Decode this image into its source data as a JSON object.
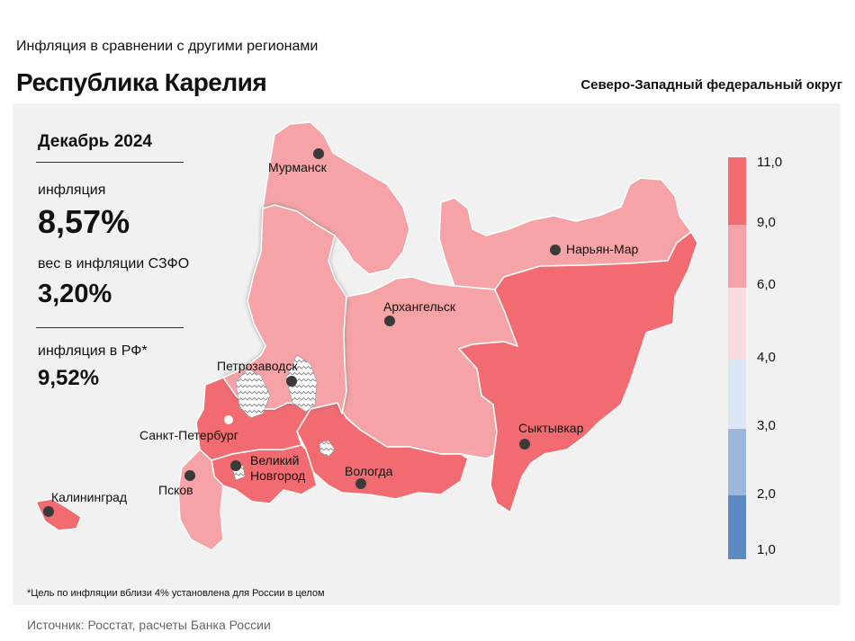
{
  "header": {
    "subtitle": "Инфляция в сравнении с другими регионами",
    "title": "Республика Карелия",
    "district": "Северо-Западный федеральный округ"
  },
  "stats": {
    "date": "Декабрь 2024",
    "inflation_label": "инфляция",
    "inflation_value": "8,57%",
    "weight_label": "вес в инфляции СЗФО",
    "weight_value": "3,20%",
    "rf_label": "инфляция в РФ*",
    "rf_value": "9,52%"
  },
  "map": {
    "highlighted_region": "Республика Карелия",
    "cities": [
      "Мурманск",
      "Нарьян-Мар",
      "Архангельск",
      "Петрозаводск",
      "Сыктывкар",
      "Санкт-Петербург",
      "Великий Новгород",
      "Вологда",
      "Псков",
      "Калининград"
    ],
    "region_colors": {
      "Мурманская область": "#f5a3a6",
      "Ненецкий АО": "#f5a3a6",
      "Архангельская область": "#f5a3a6",
      "Республика Карелия": "#f5a3a6",
      "Республика Коми": "#f26b70",
      "Вологодская область": "#f26b70",
      "Новгородская область": "#f26b70",
      "Ленинградская область": "#f26b70",
      "Псковская область": "#f5a3a6",
      "Калининградская область": "#f26b70"
    }
  },
  "legend": {
    "ticks": [
      "11,0",
      "9,0",
      "6,0",
      "4,0",
      "3,0",
      "2,0",
      "1,0"
    ],
    "colors": [
      "#f26b70",
      "#f5a3a6",
      "#f9dcde",
      "#dce6f4",
      "#9db8dd",
      "#5b8ac4"
    ]
  },
  "footnote": "*Цель по инфляции вблизи 4% установлена для России в целом",
  "source": "Источник: Росстат, расчеты Банка России"
}
